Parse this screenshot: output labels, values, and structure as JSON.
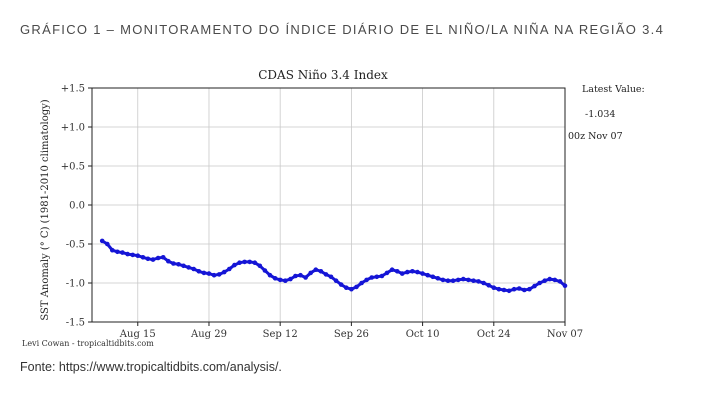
{
  "page": {
    "heading": "GRÁFICO 1 – MONITORAMENTO DO ÍNDICE DIÁRIO DE EL NIÑO/LA NIÑA NA REGIÃO 3.4",
    "source": "Fonte: https://www.tropicaltidbits.com/analysis/."
  },
  "colors": {
    "series": "#1515d6",
    "axis": "#222222",
    "grid": "#c9c9c9",
    "text": "#333333"
  },
  "chart_data": {
    "type": "line",
    "title": "CDAS Niño 3.4 Index",
    "ylabel": "SST Anomaly (° C) (1981-2010 climatology)",
    "xlabel": "",
    "ylim": [
      -1.5,
      1.5
    ],
    "yticks": [
      1.5,
      1.0,
      0.5,
      0.0,
      -0.5,
      -1.0,
      -1.5
    ],
    "ytick_labels": [
      "+1.5",
      "+1.0",
      "+0.5",
      "0.0",
      "-0.5",
      "-1.0",
      "-1.5"
    ],
    "x_unit": "day",
    "x_range": [
      "Aug 06",
      "Nov 07"
    ],
    "xticks": [
      {
        "label": "Aug 15",
        "date": "Aug 15"
      },
      {
        "label": "Aug 29",
        "date": "Aug 29"
      },
      {
        "label": "Sep 12",
        "date": "Sep 12"
      },
      {
        "label": "Sep 26",
        "date": "Sep 26"
      },
      {
        "label": "Oct 10",
        "date": "Oct 10"
      },
      {
        "label": "Oct 24",
        "date": "Oct 24"
      },
      {
        "label": "Nov 07",
        "date": "Nov 07"
      }
    ],
    "grid": true,
    "latest_label": "Latest Value:",
    "latest_value": "-1.034",
    "latest_time": "00z Nov 07",
    "credit": "Levi Cowan - tropicaltidbits.com",
    "series": [
      {
        "x": [
          "Aug 08",
          "Aug 09",
          "Aug 10",
          "Aug 11",
          "Aug 12",
          "Aug 13",
          "Aug 14",
          "Aug 15",
          "Aug 16",
          "Aug 17",
          "Aug 18",
          "Aug 19",
          "Aug 20",
          "Aug 21",
          "Aug 22",
          "Aug 23",
          "Aug 24",
          "Aug 25",
          "Aug 26",
          "Aug 27",
          "Aug 28",
          "Aug 29",
          "Aug 30",
          "Aug 31",
          "Sep 01",
          "Sep 02",
          "Sep 03",
          "Sep 04",
          "Sep 05",
          "Sep 06",
          "Sep 07",
          "Sep 08",
          "Sep 09",
          "Sep 10",
          "Sep 11",
          "Sep 12",
          "Sep 13",
          "Sep 14",
          "Sep 15",
          "Sep 16",
          "Sep 17",
          "Sep 18",
          "Sep 19",
          "Sep 20",
          "Sep 21",
          "Sep 22",
          "Sep 23",
          "Sep 24",
          "Sep 25",
          "Sep 26",
          "Sep 27",
          "Sep 28",
          "Sep 29",
          "Sep 30",
          "Oct 01",
          "Oct 02",
          "Oct 03",
          "Oct 04",
          "Oct 05",
          "Oct 06",
          "Oct 07",
          "Oct 08",
          "Oct 09",
          "Oct 10",
          "Oct 11",
          "Oct 12",
          "Oct 13",
          "Oct 14",
          "Oct 15",
          "Oct 16",
          "Oct 17",
          "Oct 18",
          "Oct 19",
          "Oct 20",
          "Oct 21",
          "Oct 22",
          "Oct 23",
          "Oct 24",
          "Oct 25",
          "Oct 26",
          "Oct 27",
          "Oct 28",
          "Oct 29",
          "Oct 30",
          "Oct 31",
          "Nov 01",
          "Nov 02",
          "Nov 03",
          "Nov 04",
          "Nov 05",
          "Nov 06",
          "Nov 07"
        ],
        "y": [
          -0.46,
          -0.5,
          -0.58,
          -0.6,
          -0.61,
          -0.63,
          -0.64,
          -0.65,
          -0.67,
          -0.69,
          -0.7,
          -0.68,
          -0.67,
          -0.72,
          -0.75,
          -0.76,
          -0.78,
          -0.8,
          -0.82,
          -0.85,
          -0.87,
          -0.88,
          -0.9,
          -0.89,
          -0.86,
          -0.82,
          -0.77,
          -0.74,
          -0.73,
          -0.73,
          -0.74,
          -0.78,
          -0.84,
          -0.9,
          -0.94,
          -0.96,
          -0.97,
          -0.95,
          -0.91,
          -0.9,
          -0.93,
          -0.87,
          -0.83,
          -0.85,
          -0.89,
          -0.92,
          -0.97,
          -1.02,
          -1.06,
          -1.08,
          -1.05,
          -1.0,
          -0.96,
          -0.93,
          -0.92,
          -0.91,
          -0.87,
          -0.83,
          -0.85,
          -0.88,
          -0.86,
          -0.85,
          -0.86,
          -0.88,
          -0.9,
          -0.92,
          -0.94,
          -0.96,
          -0.97,
          -0.97,
          -0.96,
          -0.95,
          -0.96,
          -0.97,
          -0.98,
          -1.0,
          -1.03,
          -1.06,
          -1.08,
          -1.09,
          -1.1,
          -1.08,
          -1.07,
          -1.09,
          -1.08,
          -1.04,
          -1.0,
          -0.97,
          -0.95,
          -0.96,
          -0.98,
          -1.034
        ]
      }
    ]
  }
}
